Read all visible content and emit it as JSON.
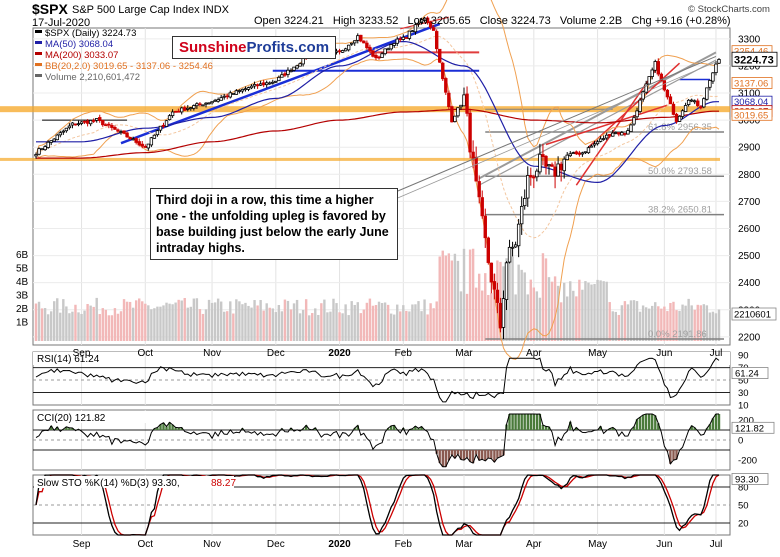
{
  "header": {
    "symbol": "$SPX",
    "name": "S&P 500 Large Cap Index",
    "exchange": "INDX",
    "date": "17-Jul-2020",
    "open_label": "Open",
    "open": "3224.21",
    "high_label": "High",
    "high": "3233.52",
    "low_label": "Low",
    "low": "3205.65",
    "close_label": "Close",
    "close": "3224.73",
    "volume_label": "Volume",
    "volume": "2.2B",
    "chg_label": "Chg",
    "chg": "+9.16 (+0.28%)",
    "watermark": "© StockCharts.com"
  },
  "brand": {
    "part1": "Sunshine",
    "part2": "Profits.com"
  },
  "annotation": "Third doji in a row, this time a higher one - the unfolding upleg is favored by base building just below the early June intraday highs.",
  "colors": {
    "up": "#000000",
    "down": "#cc0000",
    "ma50": "#1f1fa6",
    "ma200": "#b40000",
    "bb": "#f0a050",
    "volume": "#f2b8b8",
    "trend": "#1a2ed6",
    "support": "#1a2ed6",
    "resistance": "#e03c3c",
    "fib": "#808080",
    "orange_band": "#f5a623"
  },
  "chart_data": [
    {
      "type": "candlestick",
      "title": "$SPX (Daily) 3224.73",
      "legend": [
        {
          "label": "$SPX (Daily) 3224.73",
          "color": "#000000"
        },
        {
          "label": "MA(50) 3068.04",
          "color": "#1f1fa6"
        },
        {
          "label": "MA(200) 3033.07",
          "color": "#b40000"
        },
        {
          "label": "BB(20,2.0) 3019.65 - 3137.06 - 3254.46",
          "color": "#e07020"
        },
        {
          "label": "Volume 2,210,601,472",
          "color": "#666666"
        }
      ],
      "x_months": [
        "Sep",
        "Oct",
        "Nov",
        "Dec",
        "2020",
        "Feb",
        "Mar",
        "Apr",
        "May",
        "Jun",
        "Jul"
      ],
      "y_ticks": [
        2200,
        2300,
        2400,
        2500,
        2600,
        2700,
        2800,
        2900,
        3000,
        3100,
        3200,
        3300
      ],
      "ylim": [
        2170,
        3340
      ],
      "volume_ticks": [
        "1B",
        "2B",
        "3B",
        "4B",
        "5B",
        "6B"
      ],
      "price_labels": [
        "3254.46",
        "3224.73",
        "3137.06",
        "3068.04",
        "3033.07",
        "3019.65",
        "2210601"
      ],
      "fib_labels": [
        "61.8% 2956.35",
        "50.0% 2793.58",
        "38.2% 2650.81",
        "0.0% 2191.86"
      ],
      "monthly_ohlc": [
        {
          "month": "Sep",
          "open": 2898,
          "high": 3021,
          "low": 2889,
          "close": 2977
        },
        {
          "month": "Oct",
          "open": 2983,
          "high": 3050,
          "low": 2855,
          "close": 3037
        },
        {
          "month": "Nov",
          "open": 3050,
          "high": 3155,
          "low": 3050,
          "close": 3141
        },
        {
          "month": "Dec",
          "open": 3143,
          "high": 3248,
          "low": 3071,
          "close": 3231
        },
        {
          "month": "2020",
          "open": 3245,
          "high": 3337,
          "low": 3214,
          "close": 3226
        },
        {
          "month": "Feb",
          "open": 3235,
          "high": 3394,
          "low": 2855,
          "close": 2954
        },
        {
          "month": "Mar",
          "open": 2974,
          "high": 3136,
          "low": 2192,
          "close": 2585
        },
        {
          "month": "Apr",
          "open": 2499,
          "high": 2955,
          "low": 2447,
          "close": 2912
        },
        {
          "month": "May",
          "open": 2869,
          "high": 3068,
          "low": 2767,
          "close": 3044
        },
        {
          "month": "Jun",
          "open": 3039,
          "high": 3233,
          "low": 2966,
          "close": 3100
        },
        {
          "month": "Jul",
          "open": 3106,
          "high": 3233,
          "low": 3097,
          "close": 3225
        }
      ],
      "ma50_path": [
        2920,
        2970,
        3010,
        3080,
        3200,
        3290,
        3200,
        2830,
        2770,
        2980,
        3068
      ],
      "ma200_path": [
        2860,
        2880,
        2920,
        2960,
        3000,
        3030,
        3040,
        3000,
        2990,
        3010,
        3033
      ]
    },
    {
      "type": "line",
      "title": "RSI(14) 61.24",
      "y_ticks": [
        10,
        30,
        50,
        70,
        90
      ],
      "ylim": [
        10,
        95
      ],
      "last": 61.24
    },
    {
      "type": "line",
      "title": "CCI(20) 121.82",
      "y_ticks": [
        -200,
        0,
        100,
        200
      ],
      "ylim": [
        -300,
        300
      ],
      "last": 121.82
    },
    {
      "type": "line",
      "title": "Slow STO %K(14) %D(3) 93.30, 88.27",
      "title_k": "Slow STO %K(14) %D(3) 93.30,",
      "title_d": "88.27",
      "y_ticks": [
        20,
        50,
        80
      ],
      "ylim": [
        0,
        100
      ],
      "last_k": 93.3,
      "last_d": 88.27
    }
  ]
}
